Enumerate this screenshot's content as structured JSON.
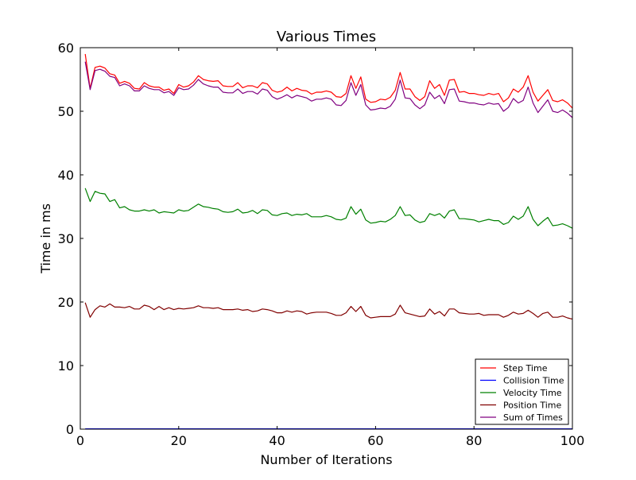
{
  "chart_data": {
    "type": "line",
    "title": "Various Times",
    "xlabel": "Number of Iterations",
    "ylabel": "Time in ms",
    "xlim": [
      0,
      100
    ],
    "ylim": [
      0,
      60
    ],
    "xticks": [
      0,
      20,
      40,
      60,
      80,
      100
    ],
    "yticks": [
      0,
      10,
      20,
      30,
      40,
      50,
      60
    ],
    "grid": false,
    "legend_position": "lower-right",
    "series": [
      {
        "name": "Step Time",
        "color": "#ff0000",
        "x": [
          1,
          2,
          3,
          4,
          5,
          6,
          7,
          8,
          9,
          10,
          11,
          12,
          13,
          14,
          15,
          16,
          17,
          18,
          19,
          20,
          21,
          22,
          23,
          24,
          25,
          26,
          27,
          28,
          29,
          30,
          31,
          32,
          33,
          34,
          35,
          36,
          37,
          38,
          39,
          40,
          41,
          42,
          43,
          44,
          45,
          46,
          47,
          48,
          49,
          50,
          51,
          52,
          53,
          54,
          55,
          56,
          57,
          58,
          59,
          60,
          61,
          62,
          63,
          64,
          65,
          66,
          67,
          68,
          69,
          70,
          71,
          72,
          73,
          74,
          75,
          76,
          77,
          78,
          79,
          80,
          81,
          82,
          83,
          84,
          85,
          86,
          87,
          88,
          89,
          90,
          91,
          92,
          93,
          94,
          95,
          96,
          97,
          98,
          99,
          100
        ],
        "values": [
          59.0,
          53.6,
          56.9,
          57.1,
          56.8,
          55.9,
          55.7,
          54.4,
          54.7,
          54.4,
          53.6,
          53.5,
          54.5,
          54.0,
          53.8,
          53.8,
          53.3,
          53.5,
          52.8,
          54.2,
          53.8,
          54.0,
          54.6,
          55.6,
          55.0,
          54.8,
          54.7,
          54.8,
          54.0,
          53.9,
          53.9,
          54.5,
          53.7,
          54.0,
          54.0,
          53.7,
          54.5,
          54.3,
          53.3,
          53.0,
          53.2,
          53.8,
          53.2,
          53.6,
          53.3,
          53.2,
          52.7,
          53.0,
          53.0,
          53.2,
          53.0,
          52.3,
          52.2,
          52.8,
          55.6,
          53.6,
          55.4,
          51.9,
          51.4,
          51.5,
          51.9,
          51.8,
          52.2,
          53.3,
          56.1,
          53.5,
          53.5,
          52.3,
          51.7,
          52.3,
          54.8,
          53.6,
          54.2,
          52.5,
          54.9,
          55.0,
          53.0,
          53.1,
          52.8,
          52.8,
          52.6,
          52.5,
          52.8,
          52.6,
          52.8,
          51.5,
          52.1,
          53.5,
          53.0,
          53.8,
          55.6,
          53.0,
          51.6,
          52.5,
          53.4,
          51.7,
          51.5,
          51.8,
          51.3,
          50.5
        ]
      },
      {
        "name": "Collision Time",
        "color": "#0000ff",
        "x": [
          1,
          100
        ],
        "values": [
          0.05,
          0.05
        ]
      },
      {
        "name": "Velocity Time",
        "color": "#008000",
        "x": [
          1,
          2,
          3,
          4,
          5,
          6,
          7,
          8,
          9,
          10,
          11,
          12,
          13,
          14,
          15,
          16,
          17,
          18,
          19,
          20,
          21,
          22,
          23,
          24,
          25,
          26,
          27,
          28,
          29,
          30,
          31,
          32,
          33,
          34,
          35,
          36,
          37,
          38,
          39,
          40,
          41,
          42,
          43,
          44,
          45,
          46,
          47,
          48,
          49,
          50,
          51,
          52,
          53,
          54,
          55,
          56,
          57,
          58,
          59,
          60,
          61,
          62,
          63,
          64,
          65,
          66,
          67,
          68,
          69,
          70,
          71,
          72,
          73,
          74,
          75,
          76,
          77,
          78,
          79,
          80,
          81,
          82,
          83,
          84,
          85,
          86,
          87,
          88,
          89,
          90,
          91,
          92,
          93,
          94,
          95,
          96,
          97,
          98,
          99,
          100
        ],
        "values": [
          37.9,
          35.8,
          37.4,
          37.1,
          37.0,
          35.8,
          36.1,
          34.8,
          35.0,
          34.5,
          34.3,
          34.3,
          34.5,
          34.3,
          34.5,
          34.0,
          34.2,
          34.1,
          34.0,
          34.5,
          34.3,
          34.4,
          34.9,
          35.4,
          35.0,
          34.9,
          34.7,
          34.6,
          34.2,
          34.1,
          34.2,
          34.6,
          34.0,
          34.1,
          34.4,
          33.9,
          34.5,
          34.4,
          33.7,
          33.6,
          33.9,
          34.0,
          33.6,
          33.8,
          33.7,
          33.9,
          33.4,
          33.4,
          33.4,
          33.6,
          33.4,
          33.0,
          32.9,
          33.2,
          35.0,
          33.8,
          34.6,
          32.9,
          32.4,
          32.5,
          32.7,
          32.6,
          33.0,
          33.6,
          35.0,
          33.6,
          33.7,
          32.9,
          32.5,
          32.7,
          33.9,
          33.6,
          33.9,
          33.2,
          34.3,
          34.5,
          33.1,
          33.1,
          33.0,
          32.9,
          32.6,
          32.8,
          33.0,
          32.8,
          32.8,
          32.2,
          32.5,
          33.5,
          33.0,
          33.5,
          35.0,
          33.0,
          32.0,
          32.7,
          33.3,
          32.0,
          32.1,
          32.3,
          32.0,
          31.6
        ]
      },
      {
        "name": "Position Time",
        "color": "#800000",
        "x": [
          1,
          2,
          3,
          4,
          5,
          6,
          7,
          8,
          9,
          10,
          11,
          12,
          13,
          14,
          15,
          16,
          17,
          18,
          19,
          20,
          21,
          22,
          23,
          24,
          25,
          26,
          27,
          28,
          29,
          30,
          31,
          32,
          33,
          34,
          35,
          36,
          37,
          38,
          39,
          40,
          41,
          42,
          43,
          44,
          45,
          46,
          47,
          48,
          49,
          50,
          51,
          52,
          53,
          54,
          55,
          56,
          57,
          58,
          59,
          60,
          61,
          62,
          63,
          64,
          65,
          66,
          67,
          68,
          69,
          70,
          71,
          72,
          73,
          74,
          75,
          76,
          77,
          78,
          79,
          80,
          81,
          82,
          83,
          84,
          85,
          86,
          87,
          88,
          89,
          90,
          91,
          92,
          93,
          94,
          95,
          96,
          97,
          98,
          99,
          100
        ],
        "values": [
          19.9,
          17.6,
          18.8,
          19.4,
          19.2,
          19.7,
          19.2,
          19.2,
          19.1,
          19.3,
          18.9,
          18.9,
          19.5,
          19.3,
          18.8,
          19.3,
          18.8,
          19.1,
          18.8,
          19.0,
          18.9,
          19.0,
          19.1,
          19.4,
          19.1,
          19.1,
          19.0,
          19.1,
          18.8,
          18.8,
          18.8,
          18.9,
          18.7,
          18.8,
          18.5,
          18.6,
          18.9,
          18.8,
          18.6,
          18.3,
          18.3,
          18.6,
          18.4,
          18.6,
          18.5,
          18.1,
          18.3,
          18.4,
          18.4,
          18.4,
          18.2,
          17.9,
          17.9,
          18.3,
          19.3,
          18.5,
          19.3,
          17.9,
          17.5,
          17.6,
          17.7,
          17.7,
          17.7,
          18.1,
          19.5,
          18.3,
          18.1,
          17.9,
          17.7,
          17.8,
          18.9,
          18.1,
          18.5,
          17.8,
          18.9,
          18.9,
          18.3,
          18.2,
          18.1,
          18.1,
          18.2,
          17.9,
          18.0,
          18.0,
          18.0,
          17.6,
          17.9,
          18.4,
          18.1,
          18.2,
          18.7,
          18.2,
          17.6,
          18.2,
          18.4,
          17.6,
          17.6,
          17.8,
          17.5,
          17.3
        ]
      },
      {
        "name": "Sum of Times",
        "color": "#800080",
        "x": [
          1,
          2,
          3,
          4,
          5,
          6,
          7,
          8,
          9,
          10,
          11,
          12,
          13,
          14,
          15,
          16,
          17,
          18,
          19,
          20,
          21,
          22,
          23,
          24,
          25,
          26,
          27,
          28,
          29,
          30,
          31,
          32,
          33,
          34,
          35,
          36,
          37,
          38,
          39,
          40,
          41,
          42,
          43,
          44,
          45,
          46,
          47,
          48,
          49,
          50,
          51,
          52,
          53,
          54,
          55,
          56,
          57,
          58,
          59,
          60,
          61,
          62,
          63,
          64,
          65,
          66,
          67,
          68,
          69,
          70,
          71,
          72,
          73,
          74,
          75,
          76,
          77,
          78,
          79,
          80,
          81,
          82,
          83,
          84,
          85,
          86,
          87,
          88,
          89,
          90,
          91,
          92,
          93,
          94,
          95,
          96,
          97,
          98,
          99,
          100
        ],
        "values": [
          57.8,
          53.4,
          56.4,
          56.6,
          56.3,
          55.5,
          55.3,
          54.0,
          54.3,
          54.0,
          53.2,
          53.2,
          54.0,
          53.6,
          53.4,
          53.4,
          52.9,
          53.1,
          52.5,
          53.7,
          53.4,
          53.5,
          54.1,
          55.0,
          54.3,
          54.0,
          53.8,
          53.8,
          53.0,
          52.9,
          52.9,
          53.5,
          52.8,
          53.1,
          53.1,
          52.7,
          53.5,
          53.3,
          52.3,
          51.9,
          52.2,
          52.6,
          52.1,
          52.5,
          52.3,
          52.1,
          51.6,
          51.9,
          51.9,
          52.1,
          51.9,
          51.0,
          50.9,
          51.7,
          54.5,
          52.5,
          54.2,
          51.0,
          50.2,
          50.3,
          50.5,
          50.4,
          50.8,
          51.9,
          54.9,
          52.1,
          52.0,
          51.0,
          50.4,
          51.0,
          53.0,
          52.0,
          52.5,
          51.2,
          53.4,
          53.5,
          51.6,
          51.5,
          51.3,
          51.3,
          51.1,
          51.0,
          51.3,
          51.1,
          51.2,
          50.0,
          50.6,
          52.0,
          51.3,
          51.7,
          53.8,
          51.3,
          49.8,
          50.8,
          51.8,
          50.0,
          49.8,
          50.2,
          49.7,
          49.0
        ]
      }
    ]
  }
}
